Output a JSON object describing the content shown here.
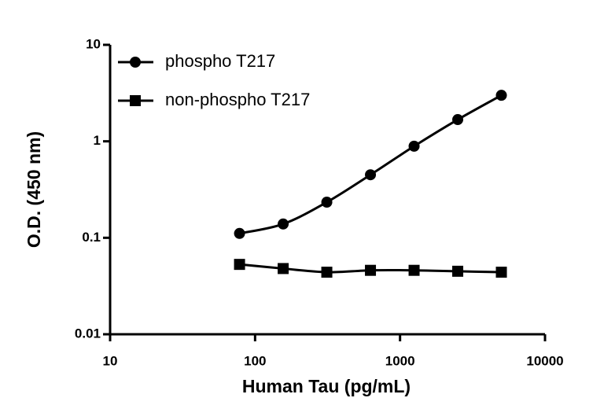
{
  "chart_data": {
    "type": "line",
    "x_label": "Human Tau (pg/mL)",
    "y_label": "O.D. (450 nm)",
    "x": [
      78.125,
      156.25,
      312.5,
      625,
      1250,
      2500,
      5000
    ],
    "series": [
      {
        "name": "phospho T217",
        "color": "#000000",
        "marker": "circle",
        "values": [
          0.111,
          0.139,
          0.234,
          0.45,
          0.89,
          1.68,
          3.0
        ]
      },
      {
        "name": "non-phospho T217",
        "color": "#000000",
        "marker": "square",
        "values": [
          0.053,
          0.048,
          0.044,
          0.046,
          0.046,
          0.045,
          0.044
        ]
      }
    ],
    "xscale": "log",
    "yscale": "log",
    "xlim": [
      10,
      10000
    ],
    "ylim": [
      0.01,
      10
    ],
    "xticks": [
      10,
      100,
      1000,
      10000
    ],
    "yticks": [
      0.01,
      0.1,
      1,
      10
    ],
    "legend": "upper left"
  }
}
